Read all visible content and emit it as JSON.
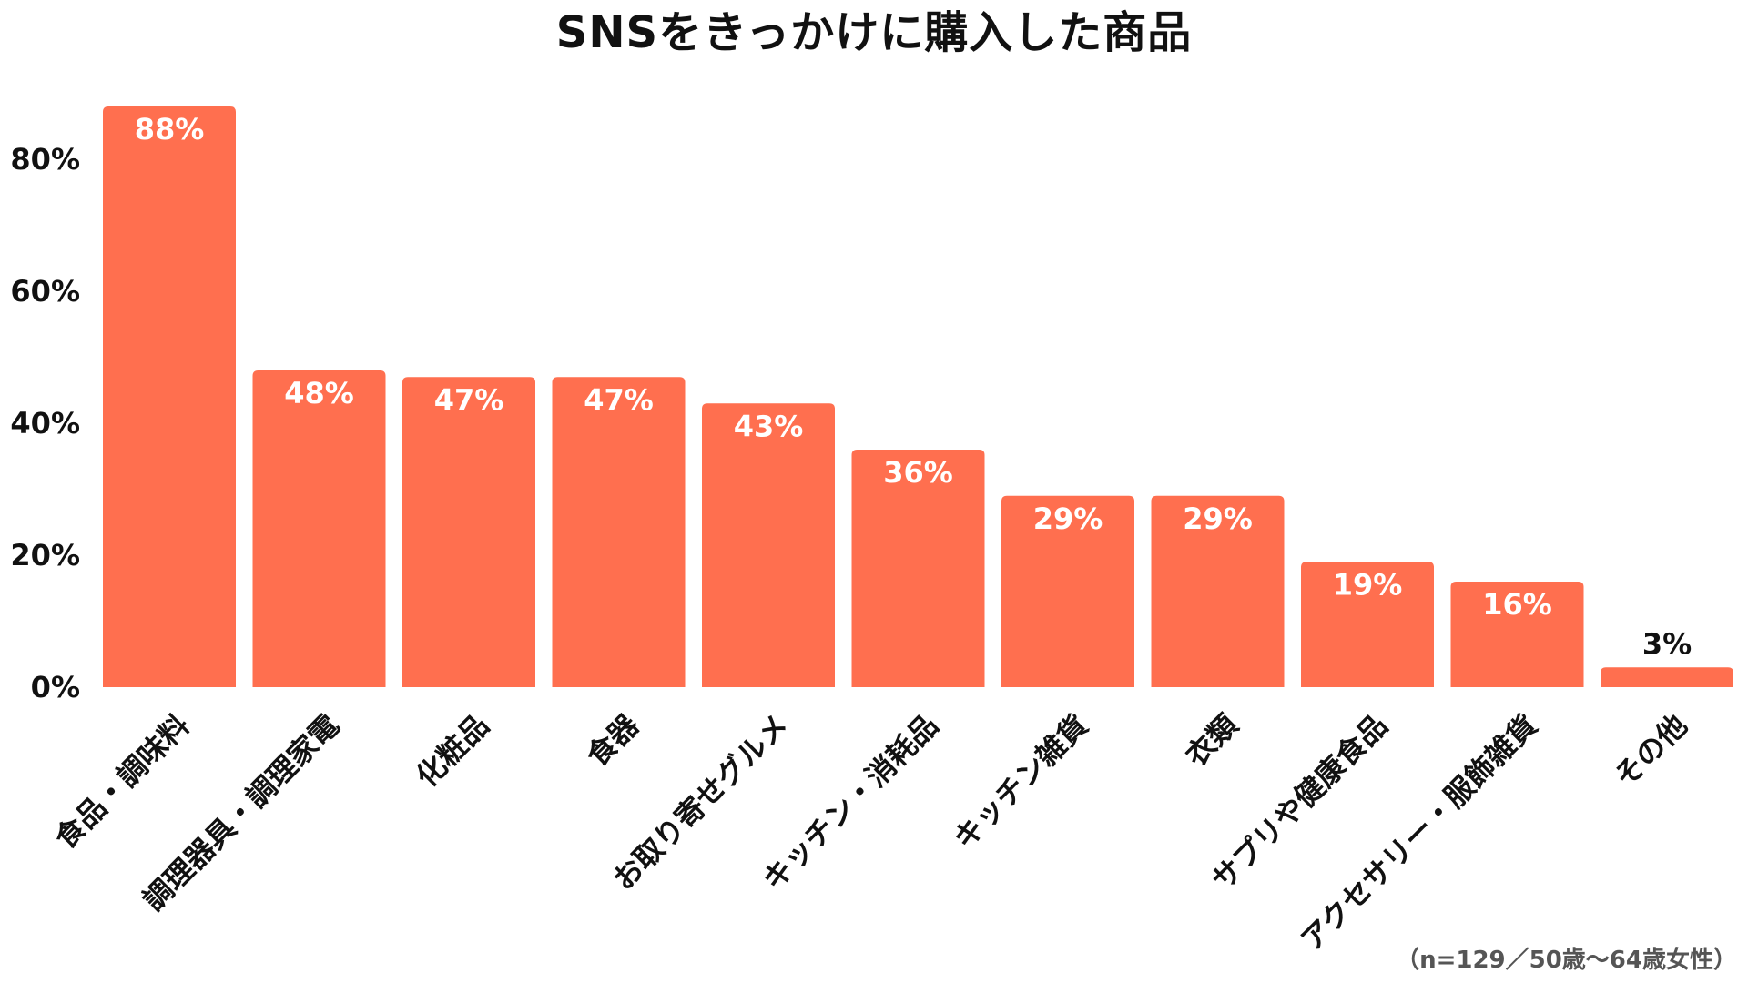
{
  "chart_data": {
    "type": "bar",
    "title": "SNSをきっかけに購入した商品",
    "categories": [
      "食品・調味料",
      "調理器具・調理家電",
      "化粧品",
      "食器",
      "お取り寄せグルメ",
      "キッチン・消耗品",
      "キッチン雑貨",
      "衣類",
      "サプリや健康食品",
      "アクセサリー・服飾雑貨",
      "その他"
    ],
    "values": [
      88,
      48,
      47,
      47,
      43,
      36,
      29,
      29,
      19,
      16,
      3
    ],
    "value_labels": [
      "88%",
      "48%",
      "47%",
      "47%",
      "43%",
      "36%",
      "29%",
      "29%",
      "19%",
      "16%",
      "3%"
    ],
    "y_ticks": [
      0,
      20,
      40,
      60,
      80
    ],
    "y_tick_labels": [
      "0%",
      "20%",
      "40%",
      "60%",
      "80%"
    ],
    "ylim": [
      0,
      90
    ],
    "xlabel": "",
    "ylabel": "",
    "grid": false,
    "bar_color": "#FF6F4F",
    "value_label_color_inside": "#FFFFFF",
    "value_label_color_outside": "#111111",
    "note": "（n=129／50歳〜64歳女性）"
  }
}
